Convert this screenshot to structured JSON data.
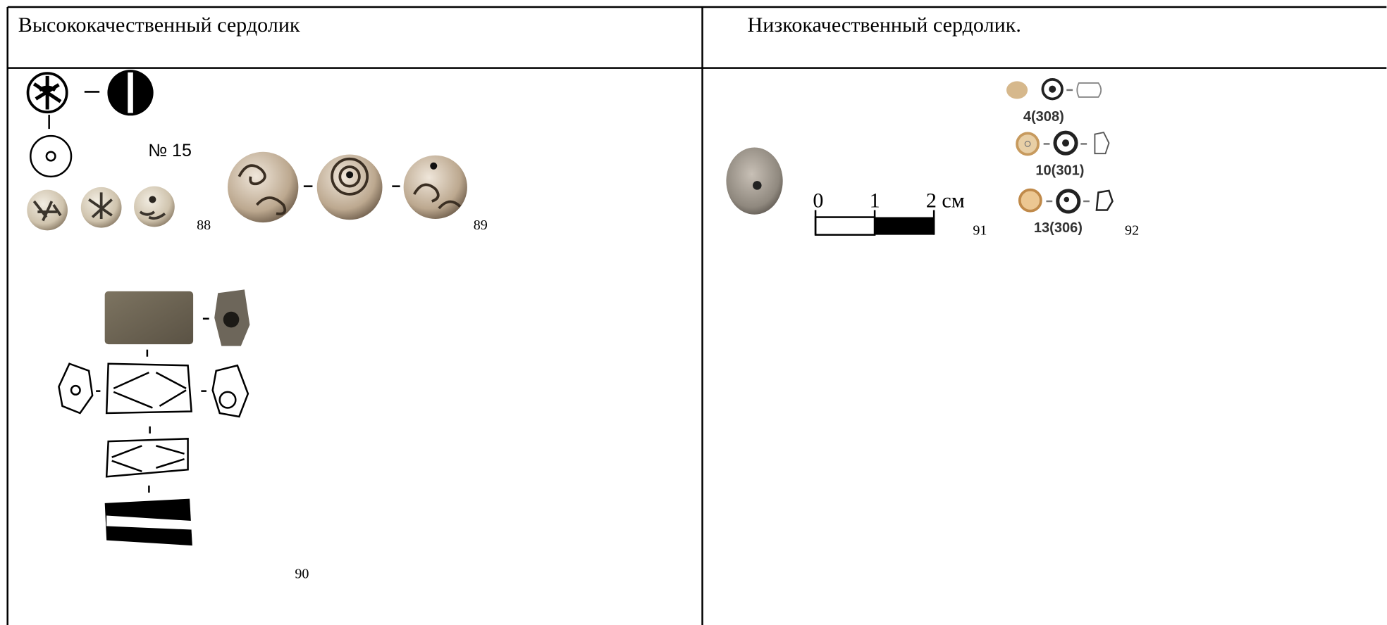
{
  "table": {
    "header": [
      "Высококачественный сердолик",
      "Низкокачественный сердолик."
    ],
    "left": {
      "figure_label": "№ 15",
      "numbers": [
        "88",
        "89",
        "90"
      ]
    },
    "right": {
      "scale": [
        "0",
        "1",
        "2 см"
      ],
      "captions": [
        "4(308)",
        "10(301)",
        "13(306)"
      ],
      "numbers": [
        "91",
        "92"
      ]
    }
  }
}
